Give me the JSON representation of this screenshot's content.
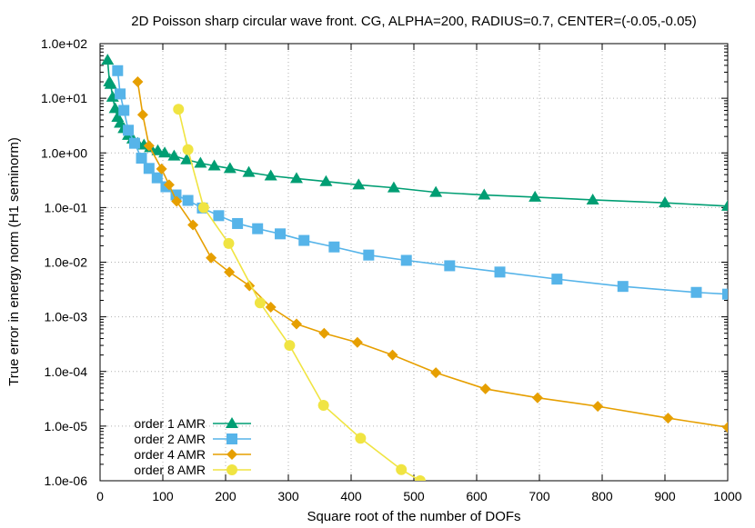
{
  "chart_data": {
    "type": "line",
    "title": "2D Poisson sharp circular wave front. CG, ALPHA=200, RADIUS=0.7, CENTER=(-0.05,-0.05)",
    "xlabel": "Square root of the number of DOFs",
    "ylabel": "True error in energy norm (H1 seminorm)",
    "xlim": [
      0,
      1000
    ],
    "ylim": [
      1e-06,
      100
    ],
    "yscale": "log",
    "grid": true,
    "legend_position": "bottom-left",
    "x_ticks": [
      "0",
      "100",
      "200",
      "300",
      "400",
      "500",
      "600",
      "700",
      "800",
      "900",
      "1000"
    ],
    "y_ticks": [
      "1.0e+02",
      "1.0e+01",
      "1.0e+00",
      "1.0e-01",
      "1.0e-02",
      "1.0e-03",
      "1.0e-04",
      "1.0e-05",
      "1.0e-06"
    ],
    "series": [
      {
        "name": "order 1 AMR",
        "color": "#009e73",
        "marker": "triangle",
        "points": [
          [
            12,
            50
          ],
          [
            15,
            20
          ],
          [
            17,
            18
          ],
          [
            20,
            10.5
          ],
          [
            24,
            6.5
          ],
          [
            28,
            4.5
          ],
          [
            32,
            3.5
          ],
          [
            38,
            2.8
          ],
          [
            45,
            2.1
          ],
          [
            52,
            1.8
          ],
          [
            60,
            1.5
          ],
          [
            70,
            1.4
          ],
          [
            80,
            1.25
          ],
          [
            92,
            1.1
          ],
          [
            103,
            1.0
          ],
          [
            118,
            0.88
          ],
          [
            138,
            0.75
          ],
          [
            160,
            0.65
          ],
          [
            182,
            0.58
          ],
          [
            207,
            0.52
          ],
          [
            237,
            0.44
          ],
          [
            272,
            0.38
          ],
          [
            313,
            0.34
          ],
          [
            360,
            0.3
          ],
          [
            412,
            0.26
          ],
          [
            468,
            0.23
          ],
          [
            535,
            0.19
          ],
          [
            612,
            0.17
          ],
          [
            693,
            0.155
          ],
          [
            785,
            0.138
          ],
          [
            900,
            0.122
          ],
          [
            1000,
            0.106
          ]
        ]
      },
      {
        "name": "order 2 AMR",
        "color": "#56b4e9",
        "marker": "square",
        "points": [
          [
            28,
            32
          ],
          [
            32,
            12
          ],
          [
            38,
            6
          ],
          [
            45,
            2.6
          ],
          [
            55,
            1.5
          ],
          [
            66,
            0.8
          ],
          [
            78,
            0.52
          ],
          [
            91,
            0.35
          ],
          [
            105,
            0.24
          ],
          [
            121,
            0.17
          ],
          [
            140,
            0.135
          ],
          [
            163,
            0.098
          ],
          [
            189,
            0.071
          ],
          [
            219,
            0.051
          ],
          [
            251,
            0.041
          ],
          [
            287,
            0.033
          ],
          [
            325,
            0.025
          ],
          [
            373,
            0.019
          ],
          [
            428,
            0.0135
          ],
          [
            488,
            0.0108
          ],
          [
            557,
            0.0086
          ],
          [
            637,
            0.0066
          ],
          [
            728,
            0.0049
          ],
          [
            833,
            0.0036
          ],
          [
            950,
            0.0028
          ],
          [
            1000,
            0.0026
          ]
        ]
      },
      {
        "name": "order 4 AMR",
        "color": "#e69f00",
        "marker": "diamond",
        "points": [
          [
            60,
            20
          ],
          [
            68,
            5
          ],
          [
            78,
            1.35
          ],
          [
            98,
            0.51
          ],
          [
            110,
            0.26
          ],
          [
            122,
            0.13
          ],
          [
            148,
            0.048
          ],
          [
            177,
            0.012
          ],
          [
            206,
            0.0066
          ],
          [
            238,
            0.0037
          ],
          [
            272,
            0.0015
          ],
          [
            313,
            0.00074
          ],
          [
            357,
            0.0005
          ],
          [
            410,
            0.00034
          ],
          [
            466,
            0.0002
          ],
          [
            535,
            9.5e-05
          ],
          [
            614,
            4.8e-05
          ],
          [
            697,
            3.3e-05
          ],
          [
            793,
            2.3e-05
          ],
          [
            905,
            1.4e-05
          ],
          [
            1000,
            9.5e-06
          ]
        ]
      },
      {
        "name": "order 8 AMR",
        "color": "#f0e442",
        "marker": "circle",
        "points": [
          [
            125,
            6.3
          ],
          [
            140,
            1.15
          ],
          [
            165,
            0.1
          ],
          [
            205,
            0.022
          ],
          [
            255,
            0.0018
          ],
          [
            302,
            0.0003
          ],
          [
            356,
            2.4e-05
          ],
          [
            415,
            6e-06
          ],
          [
            480,
            1.6e-06
          ],
          [
            510,
            1e-06
          ]
        ]
      }
    ]
  }
}
